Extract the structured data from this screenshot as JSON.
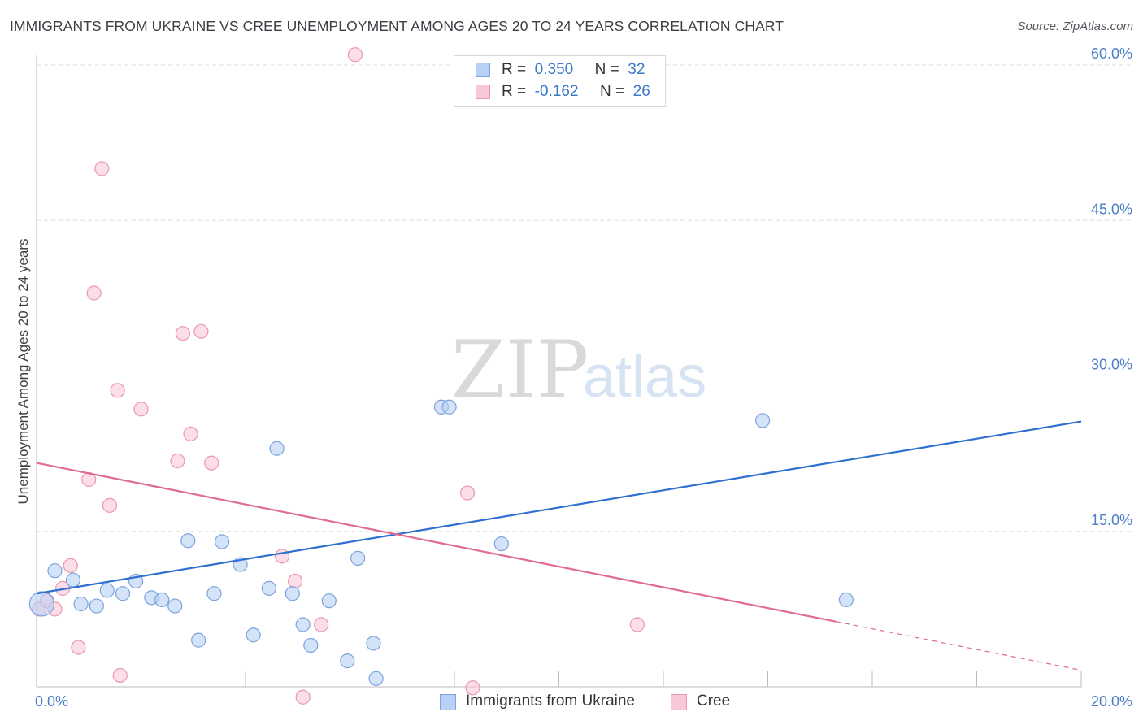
{
  "title": "IMMIGRANTS FROM UKRAINE VS CREE UNEMPLOYMENT AMONG AGES 20 TO 24 YEARS CORRELATION CHART",
  "source": "Source: ZipAtlas.com",
  "watermark": {
    "part1": "ZIP",
    "part2": "atlas"
  },
  "legend": {
    "r_label": "R =",
    "n_label": "N =",
    "entries": [
      {
        "name": "Immigrants from Ukraine",
        "r": "0.350",
        "n": "32"
      },
      {
        "name": "Cree",
        "r": "-0.162",
        "n": "26"
      }
    ]
  },
  "colors": {
    "ukraine_fill": "#b8d0f3",
    "ukraine_stroke": "#7ba3dd",
    "ukraine_line": "#2f6fcf",
    "cree_fill": "#f8c8d6",
    "cree_stroke": "#ea97b0",
    "cree_line": "#e06b93",
    "tick_color": "#4a7fc9",
    "grid": "#dddddd"
  },
  "chart_data": {
    "type": "scatter",
    "title": "IMMIGRANTS FROM UKRAINE VS CREE UNEMPLOYMENT AMONG AGES 20 TO 24 YEARS CORRELATION CHART",
    "xlabel": "",
    "ylabel": "Unemployment Among Ages 20 to 24 years",
    "xlim": [
      0,
      20
    ],
    "ylim": [
      0,
      60
    ],
    "x_tick_labels": [
      "0.0%",
      "20.0%"
    ],
    "y_ticks": [
      15,
      30,
      45,
      60
    ],
    "y_tick_labels": [
      "15.0%",
      "30.0%",
      "45.0%",
      "60.0%"
    ],
    "grid": true,
    "series": [
      {
        "name": "Immigrants from Ukraine",
        "points": [
          [
            0.1,
            8.0
          ],
          [
            0.35,
            11.2
          ],
          [
            0.7,
            10.3
          ],
          [
            0.85,
            8.0
          ],
          [
            1.15,
            7.8
          ],
          [
            1.35,
            9.3
          ],
          [
            1.65,
            9.0
          ],
          [
            1.9,
            10.2
          ],
          [
            2.2,
            8.6
          ],
          [
            2.4,
            8.4
          ],
          [
            2.65,
            7.8
          ],
          [
            2.9,
            14.1
          ],
          [
            3.1,
            4.5
          ],
          [
            3.4,
            9.0
          ],
          [
            3.55,
            14.0
          ],
          [
            3.9,
            11.8
          ],
          [
            4.15,
            5.0
          ],
          [
            4.45,
            9.5
          ],
          [
            4.6,
            23.0
          ],
          [
            4.9,
            9.0
          ],
          [
            5.1,
            6.0
          ],
          [
            5.25,
            4.0
          ],
          [
            5.6,
            8.3
          ],
          [
            5.95,
            2.5
          ],
          [
            6.15,
            12.4
          ],
          [
            6.45,
            4.2
          ],
          [
            6.5,
            0.8
          ],
          [
            7.75,
            27.0
          ],
          [
            7.9,
            27.0
          ],
          [
            8.9,
            13.8
          ],
          [
            13.9,
            25.7
          ],
          [
            15.5,
            8.4
          ]
        ],
        "trend": {
          "x": [
            0,
            20
          ],
          "y": [
            9.0,
            25.6
          ],
          "style": "solid"
        }
      },
      {
        "name": "Cree",
        "points": [
          [
            0.05,
            7.5
          ],
          [
            0.2,
            8.3
          ],
          [
            0.35,
            7.5
          ],
          [
            0.5,
            9.5
          ],
          [
            0.65,
            11.7
          ],
          [
            0.8,
            3.8
          ],
          [
            1.0,
            20.0
          ],
          [
            1.1,
            38.0
          ],
          [
            1.25,
            50.0
          ],
          [
            1.4,
            17.5
          ],
          [
            1.55,
            28.6
          ],
          [
            1.6,
            1.1
          ],
          [
            2.0,
            26.8
          ],
          [
            2.7,
            21.8
          ],
          [
            2.8,
            34.1
          ],
          [
            2.95,
            24.4
          ],
          [
            3.15,
            34.3
          ],
          [
            3.35,
            21.6
          ],
          [
            4.7,
            12.6
          ],
          [
            4.95,
            10.2
          ],
          [
            5.1,
            -1.0
          ],
          [
            5.45,
            6.0
          ],
          [
            6.1,
            61.0
          ],
          [
            8.25,
            18.7
          ],
          [
            8.35,
            -0.1
          ],
          [
            11.5,
            6.0
          ]
        ],
        "trend": {
          "x": [
            0,
            15.3
          ],
          "y": [
            21.6,
            6.3
          ],
          "style": "solid"
        },
        "trend_extension": {
          "x": [
            15.3,
            20
          ],
          "y": [
            6.3,
            1.6
          ],
          "style": "dashed"
        }
      }
    ]
  }
}
